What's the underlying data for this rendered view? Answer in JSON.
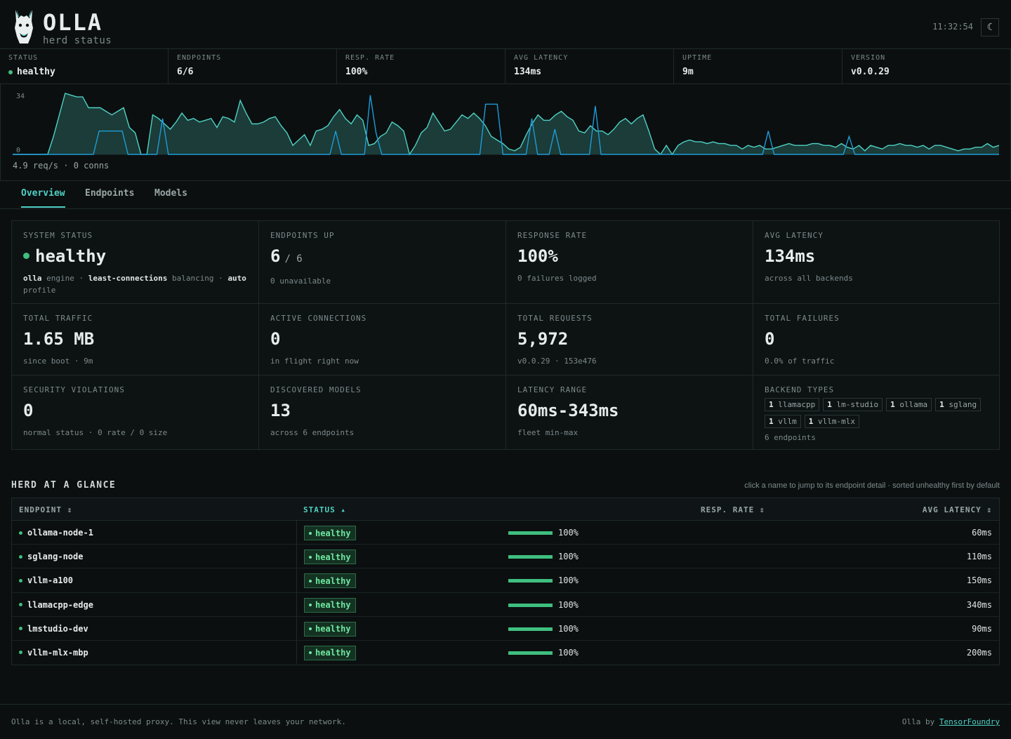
{
  "header": {
    "brand": "OLLA",
    "subtitle": "herd status",
    "clock": "11:32:54",
    "theme_icon": "moon-icon"
  },
  "strip": [
    {
      "label": "STATUS",
      "value": "healthy",
      "dot": true
    },
    {
      "label": "ENDPOINTS",
      "value": "6/6"
    },
    {
      "label": "RESP. RATE",
      "value": "100%"
    },
    {
      "label": "AVG LATENCY",
      "value": "134ms"
    },
    {
      "label": "UPTIME",
      "value": "9m"
    },
    {
      "label": "VERSION",
      "value": "v0.0.29"
    }
  ],
  "sparkline": {
    "max_label": "34",
    "min_label": "0",
    "footer": "4.9 req/s · 0 conns",
    "colors": {
      "requests": "#4fd1c5",
      "connections": "#1e9bd7",
      "fill": "#1f4440"
    },
    "requests": [
      0,
      0,
      0,
      0,
      0,
      0,
      0,
      10,
      22,
      34,
      33,
      32,
      32,
      26,
      26,
      26,
      24,
      22,
      24,
      26,
      15,
      12,
      0,
      0,
      22,
      20,
      17,
      14,
      18,
      23,
      19,
      20,
      18,
      19,
      20,
      15,
      21,
      20,
      18,
      30,
      23,
      17,
      17,
      18,
      20,
      21,
      16,
      12,
      5,
      8,
      11,
      5,
      13,
      14,
      16,
      21,
      25,
      20,
      17,
      22,
      19,
      5,
      6,
      10,
      12,
      18,
      16,
      13,
      0,
      5,
      12,
      15,
      23,
      18,
      13,
      14,
      18,
      22,
      20,
      23,
      20,
      16,
      10,
      8,
      6,
      3,
      2,
      4,
      11,
      17,
      22,
      19,
      19,
      22,
      24,
      21,
      19,
      13,
      12,
      16,
      13,
      13,
      11,
      14,
      18,
      20,
      17,
      20,
      22,
      13,
      3,
      0,
      5,
      0,
      5,
      7,
      8,
      7,
      7,
      6,
      7,
      6,
      6,
      5,
      5,
      3,
      5,
      4,
      5,
      3,
      3,
      4,
      5,
      6,
      5,
      5,
      5,
      6,
      6,
      5,
      5,
      4,
      6,
      4,
      3,
      5,
      2,
      5,
      4,
      3,
      5,
      5,
      6,
      5,
      5,
      4,
      5,
      3,
      5,
      5,
      4,
      3,
      2,
      3,
      3,
      4,
      4,
      6,
      4,
      5
    ],
    "connections": [
      0,
      0,
      0,
      0,
      0,
      0,
      0,
      0,
      0,
      0,
      0,
      0,
      0,
      0,
      0,
      13,
      13,
      13,
      13,
      13,
      0,
      0,
      0,
      0,
      0,
      0,
      20,
      0,
      0,
      0,
      0,
      0,
      0,
      0,
      0,
      0,
      0,
      0,
      0,
      0,
      0,
      0,
      0,
      0,
      0,
      0,
      0,
      0,
      0,
      0,
      0,
      0,
      0,
      0,
      0,
      0,
      13,
      0,
      0,
      0,
      0,
      0,
      33,
      12,
      0,
      0,
      0,
      0,
      0,
      0,
      0,
      0,
      0,
      0,
      0,
      0,
      0,
      0,
      0,
      0,
      0,
      0,
      28,
      28,
      28,
      0,
      0,
      0,
      0,
      0,
      20,
      0,
      0,
      0,
      14,
      0,
      0,
      0,
      0,
      0,
      0,
      27,
      0,
      0,
      0,
      0,
      0,
      0,
      0,
      0,
      0,
      0,
      0,
      0,
      0,
      0,
      0,
      0,
      0,
      0,
      0,
      0,
      0,
      0,
      0,
      0,
      0,
      0,
      0,
      0,
      0,
      13,
      0,
      0,
      0,
      0,
      0,
      0,
      0,
      0,
      0,
      0,
      0,
      0,
      0,
      10,
      0,
      0,
      0,
      0,
      0,
      0,
      0,
      0,
      0,
      0,
      0,
      0,
      0,
      0,
      0,
      0,
      0,
      0,
      0,
      0,
      0,
      0,
      0,
      0,
      0,
      0
    ]
  },
  "tabs": [
    {
      "label": "Overview",
      "active": true
    },
    {
      "label": "Endpoints",
      "active": false
    },
    {
      "label": "Models",
      "active": false
    }
  ],
  "cards": {
    "system_status": {
      "label": "SYSTEM STATUS",
      "value": "healthy",
      "engine": "olla",
      "engine_suffix": "engine ·",
      "balancer": "least-connections",
      "balancer_suffix": "balancing ·",
      "profile": "auto",
      "profile_suffix": "profile"
    },
    "endpoints_up": {
      "label": "ENDPOINTS UP",
      "value": "6",
      "suffix": "/ 6",
      "sub": "0 unavailable"
    },
    "response_rate": {
      "label": "RESPONSE RATE",
      "value": "100%",
      "sub": "0 failures logged"
    },
    "avg_latency": {
      "label": "AVG LATENCY",
      "value": "134ms",
      "sub": "across all backends"
    },
    "total_traffic": {
      "label": "TOTAL TRAFFIC",
      "value": "1.65 MB",
      "sub": "since boot · 9m"
    },
    "active_connections": {
      "label": "ACTIVE CONNECTIONS",
      "value": "0",
      "sub": "in flight right now"
    },
    "total_requests": {
      "label": "TOTAL REQUESTS",
      "value": "5,972",
      "sub": "v0.0.29 · 153e476"
    },
    "total_failures": {
      "label": "TOTAL FAILURES",
      "value": "0",
      "sub": "0.0% of traffic"
    },
    "security_violations": {
      "label": "SECURITY VIOLATIONS",
      "value": "0",
      "sub": "normal status · 0 rate / 0 size"
    },
    "discovered_models": {
      "label": "DISCOVERED MODELS",
      "value": "13",
      "sub": "across 6 endpoints"
    },
    "latency_range": {
      "label": "LATENCY RANGE",
      "value": "60ms-343ms",
      "sub": "fleet min-max"
    },
    "backend_types": {
      "label": "BACKEND TYPES",
      "types": [
        {
          "count": "1",
          "name": "llamacpp"
        },
        {
          "count": "1",
          "name": "lm-studio"
        },
        {
          "count": "1",
          "name": "ollama"
        },
        {
          "count": "1",
          "name": "sglang"
        },
        {
          "count": "1",
          "name": "vllm"
        },
        {
          "count": "1",
          "name": "vllm-mlx"
        }
      ],
      "sub": "6 endpoints"
    }
  },
  "herd": {
    "title": "HERD AT A GLANCE",
    "hint": "click a name to jump to its endpoint detail · sorted unhealthy first by default",
    "columns": {
      "endpoint": "ENDPOINT ⇕",
      "status": "STATUS ▴",
      "resp_rate": "RESP. RATE ⇕",
      "avg_latency": "AVG LATENCY ⇕"
    },
    "rows": [
      {
        "name": "ollama-node-1",
        "status": "healthy",
        "rate": "100%",
        "rate_value": 1.0,
        "latency": "60ms"
      },
      {
        "name": "sglang-node",
        "status": "healthy",
        "rate": "100%",
        "rate_value": 1.0,
        "latency": "110ms"
      },
      {
        "name": "vllm-a100",
        "status": "healthy",
        "rate": "100%",
        "rate_value": 1.0,
        "latency": "150ms"
      },
      {
        "name": "llamacpp-edge",
        "status": "healthy",
        "rate": "100%",
        "rate_value": 1.0,
        "latency": "340ms"
      },
      {
        "name": "lmstudio-dev",
        "status": "healthy",
        "rate": "100%",
        "rate_value": 1.0,
        "latency": "90ms"
      },
      {
        "name": "vllm-mlx-mbp",
        "status": "healthy",
        "rate": "100%",
        "rate_value": 1.0,
        "latency": "200ms"
      }
    ]
  },
  "footer": {
    "left": "Olla is a local, self-hosted proxy. This view never leaves your network.",
    "right_prefix": "Olla by",
    "right_link": "TensorFoundry"
  }
}
